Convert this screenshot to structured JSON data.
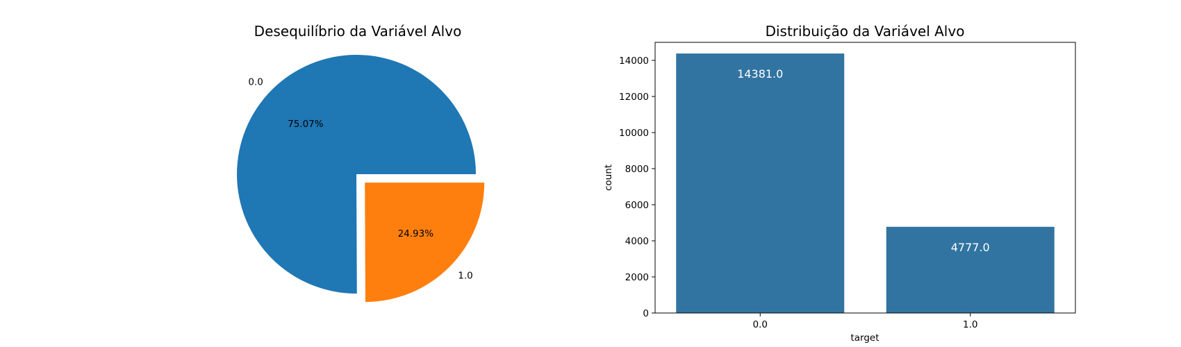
{
  "chart_data": [
    {
      "type": "pie",
      "title": "Desequilíbrio da Variável Alvo",
      "labels": [
        "0.0",
        "1.0"
      ],
      "values": [
        75.07,
        24.93
      ],
      "autopct_labels": [
        "75.07%",
        "24.93%"
      ],
      "explode": [
        0,
        0.1
      ],
      "colors": [
        "#1f77b4",
        "#ff7f0e"
      ]
    },
    {
      "type": "bar",
      "title": "Distribuição da Variável Alvo",
      "xlabel": "target",
      "ylabel": "count",
      "categories": [
        "0.0",
        "1.0"
      ],
      "values": [
        14381,
        4777
      ],
      "data_labels": [
        "14381.0",
        "4777.0"
      ],
      "ylim": [
        0,
        15000
      ],
      "yticks": [
        0,
        2000,
        4000,
        6000,
        8000,
        10000,
        12000,
        14000
      ],
      "color": "#3274a1",
      "grid": false
    }
  ]
}
